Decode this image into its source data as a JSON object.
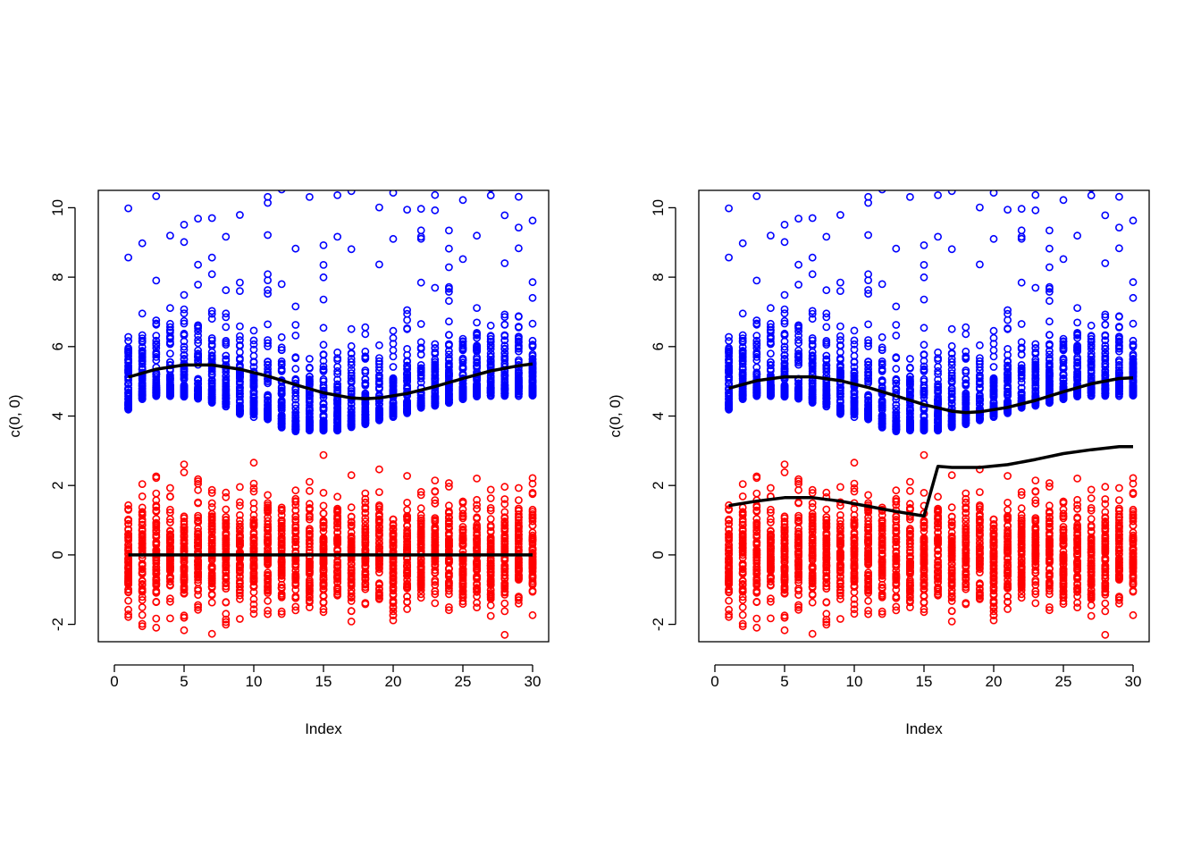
{
  "chart_data": [
    {
      "type": "scatter",
      "title": "",
      "xlabel": "Index",
      "ylabel": "c(0, 0)",
      "xlim": [
        0,
        30
      ],
      "ylim": [
        -2.5,
        10.5
      ],
      "xticks": [
        0,
        5,
        10,
        15,
        20,
        25,
        30
      ],
      "yticks": [
        -2,
        0,
        2,
        4,
        6,
        8,
        10
      ],
      "x_tick_labels": [
        "0",
        "5",
        "10",
        "15",
        "20",
        "25",
        "30"
      ],
      "y_tick_labels": [
        "-2",
        "0",
        "2",
        "4",
        "6",
        "8",
        "10"
      ],
      "grid": false,
      "series": [
        {
          "color": "#0000ff",
          "marker": "open-circle",
          "x_range": [
            1,
            30
          ],
          "dense_center": [
            5.1,
            5.4,
            5.5,
            5.5,
            5.5,
            5.4,
            5.3,
            5.2,
            5.0,
            4.9,
            4.8,
            4.6,
            4.5,
            4.5,
            4.5,
            4.5,
            4.6,
            4.7,
            4.8,
            4.9,
            5.0,
            5.1,
            5.2,
            5.3,
            5.4,
            5.5,
            5.5,
            5.5,
            5.5,
            5.5
          ],
          "spread": 0.9,
          "outlier_max": 10.5
        },
        {
          "color": "#ff0000",
          "marker": "open-circle",
          "x_range": [
            1,
            30
          ],
          "dense_center": [
            0,
            0,
            0,
            0,
            0,
            0,
            0,
            0,
            0,
            0,
            0,
            0,
            0,
            0,
            0,
            0,
            0,
            0,
            0,
            0,
            0,
            0,
            0,
            0,
            0,
            0,
            0,
            0,
            0,
            0
          ],
          "spread": 1.4,
          "outlier_min": -2.5
        }
      ],
      "lines": [
        {
          "color": "#000000",
          "x": [
            1,
            3,
            5,
            7,
            9,
            11,
            13,
            15,
            17,
            18,
            19,
            21,
            23,
            25,
            27,
            29,
            30
          ],
          "y": [
            5.12,
            5.35,
            5.47,
            5.47,
            5.35,
            5.15,
            4.9,
            4.67,
            4.52,
            4.5,
            4.52,
            4.65,
            4.85,
            5.08,
            5.3,
            5.45,
            5.5
          ]
        },
        {
          "color": "#000000",
          "x": [
            1,
            30
          ],
          "y": [
            0,
            0
          ]
        }
      ]
    },
    {
      "type": "scatter",
      "title": "",
      "xlabel": "Index",
      "ylabel": "c(0, 0)",
      "xlim": [
        0,
        30
      ],
      "ylim": [
        -2.5,
        10.5
      ],
      "xticks": [
        0,
        5,
        10,
        15,
        20,
        25,
        30
      ],
      "yticks": [
        -2,
        0,
        2,
        4,
        6,
        8,
        10
      ],
      "x_tick_labels": [
        "0",
        "5",
        "10",
        "15",
        "20",
        "25",
        "30"
      ],
      "y_tick_labels": [
        "-2",
        "0",
        "2",
        "4",
        "6",
        "8",
        "10"
      ],
      "grid": false,
      "series": [
        {
          "color": "#0000ff",
          "marker": "open-circle",
          "x_range": [
            1,
            30
          ],
          "dense_center": [
            5.1,
            5.4,
            5.5,
            5.5,
            5.5,
            5.4,
            5.3,
            5.2,
            5.0,
            4.9,
            4.8,
            4.6,
            4.5,
            4.5,
            4.5,
            4.5,
            4.6,
            4.7,
            4.8,
            4.9,
            5.0,
            5.1,
            5.2,
            5.3,
            5.4,
            5.5,
            5.5,
            5.5,
            5.5,
            5.5
          ],
          "spread": 0.9,
          "outlier_max": 10.5
        },
        {
          "color": "#ff0000",
          "marker": "open-circle",
          "x_range": [
            1,
            30
          ],
          "dense_center": [
            0,
            0,
            0,
            0,
            0,
            0,
            0,
            0,
            0,
            0,
            0,
            0,
            0,
            0,
            0,
            0,
            0,
            0,
            0,
            0,
            0,
            0,
            0,
            0,
            0,
            0,
            0,
            0,
            0,
            0
          ],
          "spread": 1.4,
          "outlier_min": -2.5
        }
      ],
      "lines": [
        {
          "color": "#000000",
          "x": [
            1,
            3,
            5,
            7,
            9,
            11,
            13,
            15,
            17,
            18,
            19,
            21,
            23,
            25,
            27,
            29,
            30
          ],
          "y": [
            4.8,
            5.02,
            5.13,
            5.13,
            5.02,
            4.82,
            4.58,
            4.33,
            4.14,
            4.1,
            4.12,
            4.25,
            4.45,
            4.7,
            4.93,
            5.08,
            5.1
          ]
        },
        {
          "color": "#000000",
          "x": [
            1,
            3,
            5,
            7,
            9,
            11,
            13,
            15,
            16,
            17,
            19,
            21,
            23,
            25,
            27,
            29,
            30
          ],
          "y": [
            1.42,
            1.55,
            1.65,
            1.65,
            1.55,
            1.4,
            1.25,
            1.12,
            2.55,
            2.52,
            2.52,
            2.6,
            2.75,
            2.92,
            3.03,
            3.12,
            3.12
          ]
        }
      ]
    }
  ]
}
